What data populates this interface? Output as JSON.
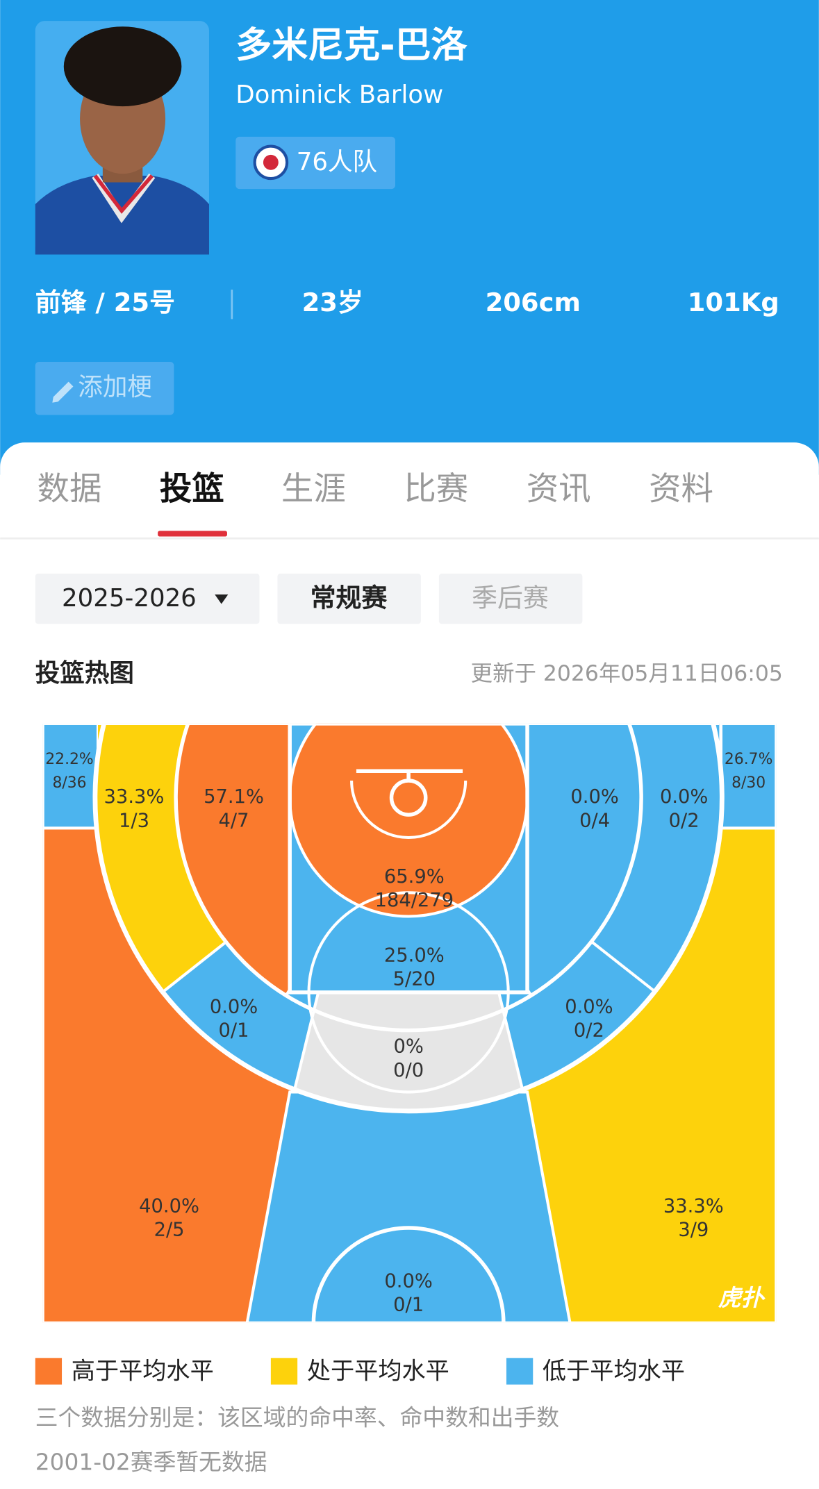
{
  "header": {
    "name_cn": "多米尼克-巴洛",
    "name_en": "Dominick Barlow",
    "team": "76人队",
    "position_number": "前锋 / 25号",
    "age": "23岁",
    "height": "206cm",
    "weight": "101Kg",
    "button": "添加梗"
  },
  "tabs": {
    "items": [
      "数据",
      "投篮",
      "生涯",
      "比赛",
      "资讯",
      "资料"
    ],
    "active": 1
  },
  "filters": {
    "season": "2025-2026",
    "regular": "常规赛",
    "playoffs": "季后赛"
  },
  "heatmap": {
    "title": "投篮热图",
    "updated": "更新于 2026年05月11日06:05",
    "watermark": "虎扑",
    "zones": [
      {
        "pct": "22.2%",
        "shots": "8/36",
        "color": "#4cb4ee"
      },
      {
        "pct": "33.3%",
        "shots": "1/3",
        "color": "#fdd20c"
      },
      {
        "pct": "57.1%",
        "shots": "4/7",
        "color": "#fa7a2d"
      },
      {
        "pct": "65.9%",
        "shots": "184/279",
        "color": "#fa7a2d"
      },
      {
        "pct": "25.0%",
        "shots": "5/20",
        "color": "#4cb4ee"
      },
      {
        "pct": "0.0%",
        "shots": "0/4",
        "color": "#4cb4ee"
      },
      {
        "pct": "0.0%",
        "shots": "0/2",
        "color": "#4cb4ee"
      },
      {
        "pct": "26.7%",
        "shots": "8/30",
        "color": "#4cb4ee"
      },
      {
        "pct": "0.0%",
        "shots": "0/1",
        "color": "#4cb4ee"
      },
      {
        "pct": "0%",
        "shots": "0/0",
        "color": "#e6e6e6"
      },
      {
        "pct": "0.0%",
        "shots": "0/2",
        "color": "#4cb4ee"
      },
      {
        "pct": "40.0%",
        "shots": "2/5",
        "color": "#fa7a2d"
      },
      {
        "pct": "0.0%",
        "shots": "0/1",
        "color": "#4cb4ee"
      },
      {
        "pct": "33.3%",
        "shots": "3/9",
        "color": "#fdd20c"
      }
    ],
    "legend": [
      {
        "label": "高于平均水平",
        "color": "#fa7a2d"
      },
      {
        "label": "处于平均水平",
        "color": "#fdd20c"
      },
      {
        "label": "低于平均水平",
        "color": "#4cb4ee"
      }
    ]
  },
  "notes": [
    "三个数据分别是：该区域的命中率、命中数和出手数",
    "2001-02赛季暂无数据"
  ]
}
